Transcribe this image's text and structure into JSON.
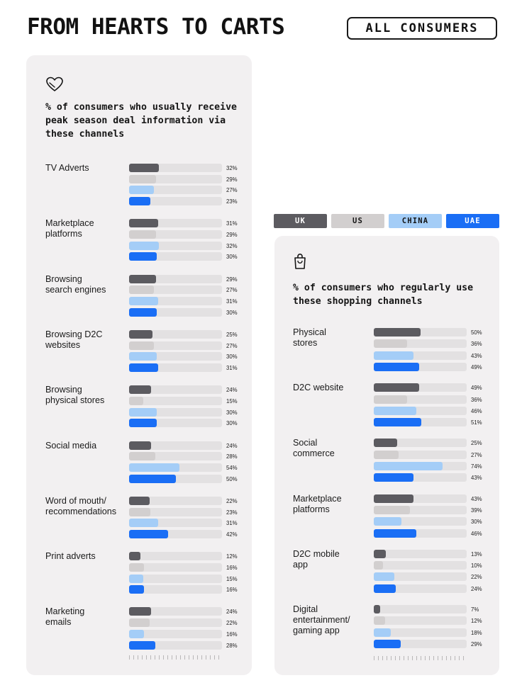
{
  "page": {
    "title": "FROM HEARTS TO CARTS",
    "filter_label": "ALL CONSUMERS"
  },
  "legend": [
    {
      "name": "UK",
      "color": "#5c5b60",
      "text_color": "#ffffff"
    },
    {
      "name": "US",
      "color": "#d2cfcf",
      "text_color": "#151515"
    },
    {
      "name": "CHINA",
      "color": "#a4cdf7",
      "text_color": "#151515"
    },
    {
      "name": "UAE",
      "color": "#1a6ef5",
      "text_color": "#ffffff"
    }
  ],
  "icons": {
    "left_panel": "heart-outline-icon",
    "right_panel": "shopping-bag-icon"
  },
  "chart_data": [
    {
      "type": "bar",
      "orientation": "horizontal",
      "title": "% of consumers who usually receive peak season deal information via these channels",
      "unit": "%",
      "xlim": [
        0,
        100
      ],
      "categories": [
        "TV Adverts",
        "Marketplace\nplatforms",
        "Browsing\nsearch engines",
        "Browsing D2C\nwebsites",
        "Browsing\nphysical stores",
        "Social media",
        "Word of mouth/\nrecommendations",
        "Print adverts",
        "Marketing\nemails"
      ],
      "series": [
        {
          "name": "UK",
          "values": [
            32,
            31,
            29,
            25,
            24,
            24,
            22,
            12,
            24
          ]
        },
        {
          "name": "US",
          "values": [
            29,
            29,
            27,
            27,
            15,
            28,
            23,
            16,
            22
          ]
        },
        {
          "name": "CHINA",
          "values": [
            27,
            32,
            31,
            30,
            30,
            54,
            31,
            15,
            16
          ]
        },
        {
          "name": "UAE",
          "values": [
            23,
            30,
            30,
            31,
            30,
            50,
            42,
            16,
            28
          ]
        }
      ]
    },
    {
      "type": "bar",
      "orientation": "horizontal",
      "title": "% of consumers who regularly use these shopping channels",
      "unit": "%",
      "xlim": [
        0,
        100
      ],
      "categories": [
        "Physical\nstores",
        "D2C website",
        "Social\ncommerce",
        "Marketplace\nplatforms",
        "D2C mobile\napp",
        "Digital\nentertainment/\ngaming app"
      ],
      "series": [
        {
          "name": "UK",
          "values": [
            50,
            49,
            25,
            43,
            13,
            7
          ]
        },
        {
          "name": "US",
          "values": [
            36,
            36,
            27,
            39,
            10,
            12
          ]
        },
        {
          "name": "CHINA",
          "values": [
            43,
            46,
            74,
            30,
            22,
            18
          ]
        },
        {
          "name": "UAE",
          "values": [
            49,
            51,
            43,
            46,
            24,
            29
          ]
        }
      ]
    }
  ]
}
